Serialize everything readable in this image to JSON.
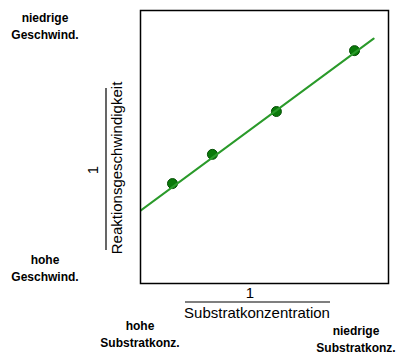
{
  "chart_data": {
    "type": "scatter",
    "xlabel": {
      "numerator": "1",
      "denominator": "Substratkonzentration"
    },
    "ylabel": {
      "numerator": "1",
      "denominator": "Reaktionsgeschwindigkeit"
    },
    "xlim": [
      0,
      10
    ],
    "ylim": [
      0,
      10
    ],
    "xticks": [],
    "yticks": [],
    "tick_labels": false,
    "grid": false,
    "series": [
      {
        "type": "scatter",
        "color": "#0a7a0a",
        "marker": "circle",
        "x": [
          1.29,
          2.9,
          5.48,
          8.63
        ],
        "values": [
          3.66,
          4.73,
          6.3,
          8.53
        ]
      },
      {
        "type": "line",
        "color": "#2a9a2a",
        "line_style": "solid",
        "x": [
          0,
          9.4
        ],
        "values": [
          2.67,
          8.97
        ]
      }
    ],
    "annotations": [
      {
        "lines": [
          "niedrige",
          "Geschwind."
        ]
      },
      {
        "lines": [
          "hohe",
          "Geschwind."
        ]
      },
      {
        "lines": [
          "hohe",
          "Substratkonz."
        ]
      },
      {
        "lines": [
          "niedrige",
          "Substratkonz."
        ]
      }
    ]
  }
}
